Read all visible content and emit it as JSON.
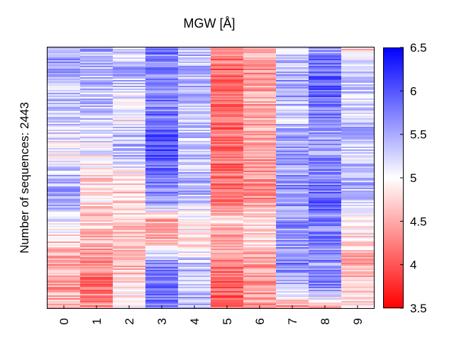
{
  "chart_data": {
    "type": "heatmap",
    "title": "MGW [Å]",
    "ylabel": "Number of sequences: 2443",
    "xlabel": "",
    "columns": [
      "0",
      "1",
      "2",
      "3",
      "4",
      "5",
      "6",
      "7",
      "8",
      "9"
    ],
    "n_sequences": 2443,
    "colorbar": {
      "min": 3.5,
      "max": 6.5,
      "ticks": [
        "6.5",
        "6",
        "5.5",
        "5",
        "4.5",
        "4",
        "3.5"
      ],
      "colormap": [
        "#ff0000",
        "#ffffff",
        "#0000ff"
      ]
    },
    "column_profiles": [
      [
        5.6,
        5.6,
        5.4,
        5.3,
        5.2,
        5.0,
        5.4,
        5.5,
        5.1,
        4.7,
        4.5,
        4.4,
        4.6
      ],
      [
        5.5,
        5.4,
        5.4,
        5.3,
        5.2,
        5.0,
        4.8,
        4.8,
        4.7,
        4.6,
        4.3,
        4.2,
        4.4
      ],
      [
        5.1,
        5.5,
        5.2,
        5.0,
        5.4,
        5.4,
        4.8,
        4.7,
        4.8,
        4.5,
        4.6,
        4.8,
        4.9
      ],
      [
        5.8,
        5.7,
        5.7,
        5.8,
        6.0,
        6.0,
        5.8,
        5.7,
        4.5,
        4.5,
        5.7,
        5.8,
        5.8
      ],
      [
        5.4,
        5.4,
        5.4,
        5.4,
        5.3,
        5.4,
        5.4,
        5.4,
        4.9,
        4.8,
        5.4,
        5.4,
        5.4
      ],
      [
        4.3,
        4.1,
        4.1,
        4.2,
        4.1,
        4.1,
        4.2,
        4.2,
        4.7,
        4.5,
        4.1,
        4.1,
        4.0
      ],
      [
        4.5,
        4.4,
        4.4,
        4.5,
        4.5,
        4.4,
        4.4,
        4.4,
        4.9,
        4.8,
        4.4,
        4.4,
        4.4
      ],
      [
        5.2,
        5.5,
        5.6,
        5.3,
        5.5,
        5.5,
        5.6,
        5.6,
        5.6,
        5.6,
        5.7,
        5.5,
        4.4
      ],
      [
        5.6,
        5.9,
        5.9,
        5.7,
        5.5,
        5.6,
        5.8,
        5.9,
        5.7,
        5.8,
        5.6,
        5.7,
        4.6
      ],
      [
        4.7,
        5.4,
        5.3,
        5.2,
        5.5,
        5.2,
        5.5,
        5.3,
        4.8,
        4.8,
        4.5,
        4.6,
        5.0
      ]
    ]
  }
}
